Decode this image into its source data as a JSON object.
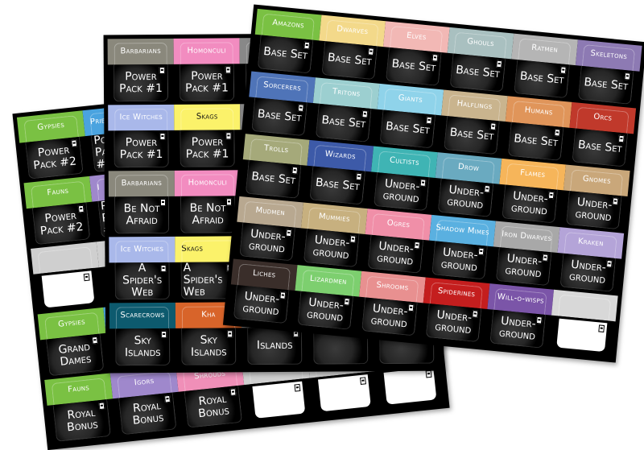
{
  "sheets": {
    "back": [
      {
        "name": "Gypsies",
        "set": "Power Pack #2",
        "color": "#7ac143",
        "text": "#fff"
      },
      {
        "name": "Priestesses",
        "set": "Power Pack #2",
        "color": "#4aa3df",
        "text": "#fff"
      },
      {
        "name": "",
        "set": "",
        "color": "#4aa3df",
        "text": "#fff"
      },
      {
        "name": "",
        "set": "",
        "color": "#888",
        "text": "#fff"
      },
      {
        "name": "",
        "set": "",
        "color": "#888",
        "text": "#fff"
      },
      {
        "name": "",
        "set": "",
        "color": "#888",
        "text": "#fff"
      },
      {
        "name": "Fauns",
        "set": "Power Pack #2",
        "color": "#7ac143",
        "text": "#fff"
      },
      {
        "name": "I",
        "set": "Power Pack #2",
        "color": "#9f88cc",
        "text": "#fff"
      },
      {
        "name": "",
        "set": "",
        "color": "#888",
        "text": "#fff"
      },
      {
        "name": "",
        "set": "",
        "color": "#888",
        "text": "#fff"
      },
      {
        "name": "",
        "set": "",
        "color": "#888",
        "text": "#fff"
      },
      {
        "name": "",
        "set": "",
        "color": "#888",
        "text": "#fff"
      },
      {
        "name": "",
        "set": "",
        "color": "#cfcfcf",
        "text": "#fff",
        "blank": true
      },
      {
        "name": "",
        "set": "",
        "color": "#cfcfcf",
        "text": "#fff",
        "blank": true
      },
      {
        "name": "",
        "set": "",
        "color": "#cfcfcf",
        "text": "#fff",
        "blank": true
      },
      {
        "name": "",
        "set": "",
        "color": "#cfcfcf",
        "text": "#fff",
        "blank": true
      },
      {
        "name": "",
        "set": "",
        "color": "#cfcfcf",
        "text": "#fff",
        "blank": true
      },
      {
        "name": "",
        "set": "",
        "color": "#cfcfcf",
        "text": "#fff",
        "blank": true
      },
      {
        "name": "Gypsies",
        "set": "Grand Dames",
        "color": "#7ac143",
        "text": "#fff"
      },
      {
        "name": "",
        "set": "",
        "color": "#4aa3df",
        "text": "#fff"
      },
      {
        "name": "",
        "set": "",
        "color": "#888",
        "text": "#fff"
      },
      {
        "name": "",
        "set": "",
        "color": "#888",
        "text": "#fff"
      },
      {
        "name": "",
        "set": "",
        "color": "#888",
        "text": "#fff"
      },
      {
        "name": "",
        "set": "",
        "color": "#888",
        "text": "#fff"
      },
      {
        "name": "Fauns",
        "set": "Royal Bonus",
        "color": "#7ac143",
        "text": "#fff"
      },
      {
        "name": "Igors",
        "set": "Royal Bonus",
        "color": "#9f88cc",
        "text": "#fff"
      },
      {
        "name": "Shrouds",
        "set": "Royal Bonus",
        "color": "#f08fb8",
        "text": "#fff"
      },
      {
        "name": "",
        "set": "",
        "color": "#cfcfcf",
        "text": "#fff",
        "blank": true
      },
      {
        "name": "",
        "set": "",
        "color": "#cfcfcf",
        "text": "#fff",
        "blank": true
      },
      {
        "name": "",
        "set": "",
        "color": "#cfcfcf",
        "text": "#fff",
        "blank": true
      }
    ],
    "middle": [
      {
        "name": "Barbarians",
        "set": "Power Pack #1",
        "color": "#8a887c",
        "text": "#fff"
      },
      {
        "name": "Homonculi",
        "set": "Power Pack #1",
        "color": "#f28cc0",
        "text": "#fff"
      },
      {
        "name": "",
        "set": "",
        "color": "#888",
        "text": "#fff"
      },
      {
        "name": "",
        "set": "",
        "color": "#888",
        "text": "#fff"
      },
      {
        "name": "",
        "set": "",
        "color": "#888",
        "text": "#fff"
      },
      {
        "name": "Ice Witches",
        "set": "Power Pack #1",
        "color": "#a9b8ea",
        "text": "#fff"
      },
      {
        "name": "Skags",
        "set": "Power Pack #1",
        "color": "#fbf26a",
        "text": "#111"
      },
      {
        "name": "",
        "set": "",
        "color": "#888",
        "text": "#fff"
      },
      {
        "name": "",
        "set": "",
        "color": "#888",
        "text": "#fff"
      },
      {
        "name": "",
        "set": "",
        "color": "#888",
        "text": "#fff"
      },
      {
        "name": "Barbarians",
        "set": "Be Not Afraid",
        "color": "#8a887c",
        "text": "#fff"
      },
      {
        "name": "Homonculi",
        "set": "Be Not Afraid",
        "color": "#f28cc0",
        "text": "#fff"
      },
      {
        "name": "",
        "set": "",
        "color": "#888",
        "text": "#fff"
      },
      {
        "name": "",
        "set": "",
        "color": "#888",
        "text": "#fff"
      },
      {
        "name": "",
        "set": "",
        "color": "#888",
        "text": "#fff"
      },
      {
        "name": "Ice Witches",
        "set": "A Spider's Web",
        "color": "#a9b8ea",
        "text": "#fff"
      },
      {
        "name": "Skags",
        "set": "A Spider's Web",
        "color": "#fbf26a",
        "text": "#111"
      },
      {
        "name": "",
        "set": "",
        "color": "#888",
        "text": "#fff"
      },
      {
        "name": "",
        "set": "",
        "color": "#888",
        "text": "#fff"
      },
      {
        "name": "",
        "set": "",
        "color": "#888",
        "text": "#fff"
      },
      {
        "name": "Scarecrows",
        "set": "Sky Islands",
        "color": "#0d5a6e",
        "text": "#fff"
      },
      {
        "name": "Kha",
        "set": "Sky Islands",
        "color": "#d8642a",
        "text": "#fff"
      },
      {
        "name": "",
        "set": "Islands",
        "color": "#888",
        "text": "#fff"
      },
      {
        "name": "",
        "set": "",
        "color": "#888",
        "text": "#fff"
      },
      {
        "name": "",
        "set": "",
        "color": "#888",
        "text": "#fff"
      }
    ],
    "front": [
      {
        "name": "Amazons",
        "set": "Base Set",
        "color": "#7ac143",
        "text": "#fff"
      },
      {
        "name": "Dwarves",
        "set": "Base Set",
        "color": "#f3d98a",
        "text": "#fff"
      },
      {
        "name": "Elves",
        "set": "Base Set",
        "color": "#f2b8b5",
        "text": "#fff"
      },
      {
        "name": "Ghouls",
        "set": "Base Set",
        "color": "#a9c0c0",
        "text": "#fff"
      },
      {
        "name": "Ratmen",
        "set": "Base Set",
        "color": "#b5b5b5",
        "text": "#fff"
      },
      {
        "name": "Skeletons",
        "set": "Base Set",
        "color": "#8d7ab3",
        "text": "#fff"
      },
      {
        "name": "Sorcerers",
        "set": "Base Set",
        "color": "#4f74b8",
        "text": "#fff"
      },
      {
        "name": "Tritons",
        "set": "Base Set",
        "color": "#9ccfd0",
        "text": "#fff"
      },
      {
        "name": "Giants",
        "set": "Base Set",
        "color": "#8fd3ea",
        "text": "#fff"
      },
      {
        "name": "Halflings",
        "set": "Base Set",
        "color": "#c9b48e",
        "text": "#fff"
      },
      {
        "name": "Humans",
        "set": "Base Set",
        "color": "#e0955a",
        "text": "#fff"
      },
      {
        "name": "Orcs",
        "set": "Base Set",
        "color": "#c0392b",
        "text": "#fff"
      },
      {
        "name": "Trolls",
        "set": "Base Set",
        "color": "#a5a97a",
        "text": "#fff"
      },
      {
        "name": "Wizards",
        "set": "Base Set",
        "color": "#3d5aa8",
        "text": "#fff"
      },
      {
        "name": "Cultists",
        "set": "Under-ground",
        "color": "#3fb4b4",
        "text": "#fff"
      },
      {
        "name": "Drow",
        "set": "Under-ground",
        "color": "#6aaac0",
        "text": "#fff"
      },
      {
        "name": "Flames",
        "set": "Under-ground",
        "color": "#f6b55a",
        "text": "#fff"
      },
      {
        "name": "Gnomes",
        "set": "Under-ground",
        "color": "#c9a77a",
        "text": "#fff"
      },
      {
        "name": "Mudmen",
        "set": "Under-ground",
        "color": "#b8a890",
        "text": "#fff"
      },
      {
        "name": "Mummies",
        "set": "Under-ground",
        "color": "#c7b07f",
        "text": "#fff"
      },
      {
        "name": "Ogres",
        "set": "Under-ground",
        "color": "#f08fa8",
        "text": "#fff"
      },
      {
        "name": "Shadow Mimes",
        "set": "Under-ground",
        "color": "#5ab0e0",
        "text": "#fff"
      },
      {
        "name": "Iron Dwarves",
        "set": "Under-ground",
        "color": "#a8a8a8",
        "text": "#fff"
      },
      {
        "name": "Kraken",
        "set": "Under-ground",
        "color": "#b4a4d8",
        "text": "#fff"
      },
      {
        "name": "Liches",
        "set": "Under-ground",
        "color": "#3a2e2a",
        "text": "#fff"
      },
      {
        "name": "Lizardmen",
        "set": "Under-ground",
        "color": "#7dcf6f",
        "text": "#fff"
      },
      {
        "name": "Shrooms",
        "set": "Under-ground",
        "color": "#e89090",
        "text": "#fff"
      },
      {
        "name": "Spiderines",
        "set": "Under-ground",
        "color": "#c41e1e",
        "text": "#fff"
      },
      {
        "name": "Will-o-wisps",
        "set": "Under-ground",
        "color": "#7b55a8",
        "text": "#fff"
      },
      {
        "name": "",
        "set": "",
        "color": "#d8d8d8",
        "text": "#fff",
        "blank": true
      }
    ]
  }
}
